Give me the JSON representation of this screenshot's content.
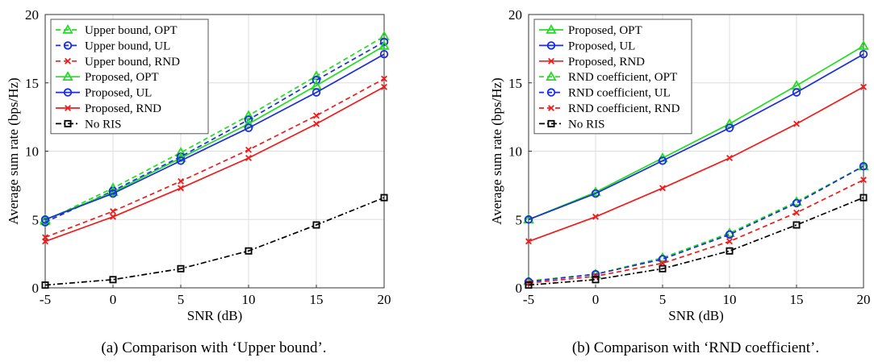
{
  "chart_data": [
    {
      "type": "line",
      "caption": "(a) Comparison with ‘Upper bound’.",
      "xlabel": "SNR (dB)",
      "ylabel": "Average sum rate (bps/Hz)",
      "xlim": [
        -5,
        20
      ],
      "ylim": [
        0,
        20
      ],
      "xticks": [
        -5,
        0,
        5,
        10,
        15,
        20
      ],
      "xtick_labels": [
        "-5",
        "0",
        "5",
        "10",
        "15",
        "20"
      ],
      "yticks": [
        0,
        5,
        10,
        15,
        20
      ],
      "ytick_labels": [
        "0",
        "5",
        "10",
        "15",
        "20"
      ],
      "grid": true,
      "legend_position": "top-left",
      "x": [
        -5,
        0,
        5,
        10,
        15,
        20
      ],
      "series": [
        {
          "name": "Upper bound, OPT",
          "color": "#22dd22",
          "dash": "dashed",
          "marker": "triangle",
          "values": [
            4.9,
            7.3,
            9.9,
            12.6,
            15.5,
            18.4
          ]
        },
        {
          "name": "Upper bound, UL",
          "color": "#1a2ee0",
          "dash": "dashed",
          "marker": "circle",
          "values": [
            4.8,
            7.1,
            9.6,
            12.3,
            15.2,
            18.0
          ]
        },
        {
          "name": "Upper bound, RND",
          "color": "#ee1c1c",
          "dash": "dashed",
          "marker": "x",
          "values": [
            3.7,
            5.6,
            7.8,
            10.1,
            12.6,
            15.3
          ]
        },
        {
          "name": "Proposed, OPT",
          "color": "#22dd22",
          "dash": "solid",
          "marker": "triangle",
          "values": [
            5.0,
            7.0,
            9.5,
            12.0,
            14.8,
            17.7
          ]
        },
        {
          "name": "Proposed, UL",
          "color": "#1a2ee0",
          "dash": "solid",
          "marker": "circle",
          "values": [
            5.0,
            6.9,
            9.3,
            11.7,
            14.3,
            17.1
          ]
        },
        {
          "name": "Proposed, RND",
          "color": "#ee1c1c",
          "dash": "solid",
          "marker": "x",
          "values": [
            3.4,
            5.2,
            7.3,
            9.5,
            12.0,
            14.7
          ]
        },
        {
          "name": "No RIS",
          "color": "#000000",
          "dash": "dashdot",
          "marker": "square",
          "values": [
            0.2,
            0.6,
            1.4,
            2.7,
            4.6,
            6.6
          ]
        }
      ]
    },
    {
      "type": "line",
      "caption": "(b) Comparison with ‘RND coefficient’.",
      "xlabel": "SNR (dB)",
      "ylabel": "Average sum rate (bps/Hz)",
      "xlim": [
        -5,
        20
      ],
      "ylim": [
        0,
        20
      ],
      "xticks": [
        -5,
        0,
        5,
        10,
        15,
        20
      ],
      "xtick_labels": [
        "-5",
        "0",
        "5",
        "10",
        "15",
        "20"
      ],
      "yticks": [
        0,
        5,
        10,
        15,
        20
      ],
      "ytick_labels": [
        "0",
        "5",
        "10",
        "15",
        "20"
      ],
      "grid": true,
      "legend_position": "top-left",
      "x": [
        -5,
        0,
        5,
        10,
        15,
        20
      ],
      "series": [
        {
          "name": "Proposed, OPT",
          "color": "#22dd22",
          "dash": "solid",
          "marker": "triangle",
          "values": [
            5.0,
            7.0,
            9.5,
            12.0,
            14.8,
            17.7
          ]
        },
        {
          "name": "Proposed, UL",
          "color": "#1a2ee0",
          "dash": "solid",
          "marker": "circle",
          "values": [
            5.0,
            6.9,
            9.3,
            11.7,
            14.3,
            17.1
          ]
        },
        {
          "name": "Proposed, RND",
          "color": "#ee1c1c",
          "dash": "solid",
          "marker": "x",
          "values": [
            3.4,
            5.2,
            7.3,
            9.5,
            12.0,
            14.7
          ]
        },
        {
          "name": "RND coefficient, OPT",
          "color": "#22dd22",
          "dash": "dashed",
          "marker": "triangle",
          "values": [
            0.5,
            1.0,
            2.2,
            4.0,
            6.3,
            8.9
          ]
        },
        {
          "name": "RND coefficient, UL",
          "color": "#1a2ee0",
          "dash": "dashed",
          "marker": "circle",
          "values": [
            0.45,
            1.0,
            2.1,
            3.9,
            6.2,
            8.9
          ]
        },
        {
          "name": "RND coefficient, RND",
          "color": "#ee1c1c",
          "dash": "dashed",
          "marker": "x",
          "values": [
            0.35,
            0.85,
            1.8,
            3.4,
            5.5,
            7.9
          ]
        },
        {
          "name": "No RIS",
          "color": "#000000",
          "dash": "dashdot",
          "marker": "square",
          "values": [
            0.2,
            0.6,
            1.4,
            2.7,
            4.6,
            6.6
          ]
        }
      ]
    }
  ]
}
